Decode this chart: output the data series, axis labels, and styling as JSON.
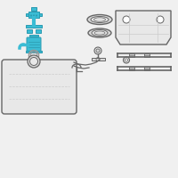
{
  "bg": "#f0f0f0",
  "white": "#ffffff",
  "teal": "#3bbcd4",
  "teal_dark": "#2a9ab0",
  "teal_mid": "#30aac5",
  "gray_dk": "#666666",
  "gray_md": "#999999",
  "gray_lt": "#cccccc",
  "gray_fill": "#e8e8e8",
  "gray_fill2": "#d8d8d8",
  "black": "#333333",
  "line_lw": 0.7,
  "fig_w": 2.0,
  "fig_h": 2.0,
  "dpi": 100
}
